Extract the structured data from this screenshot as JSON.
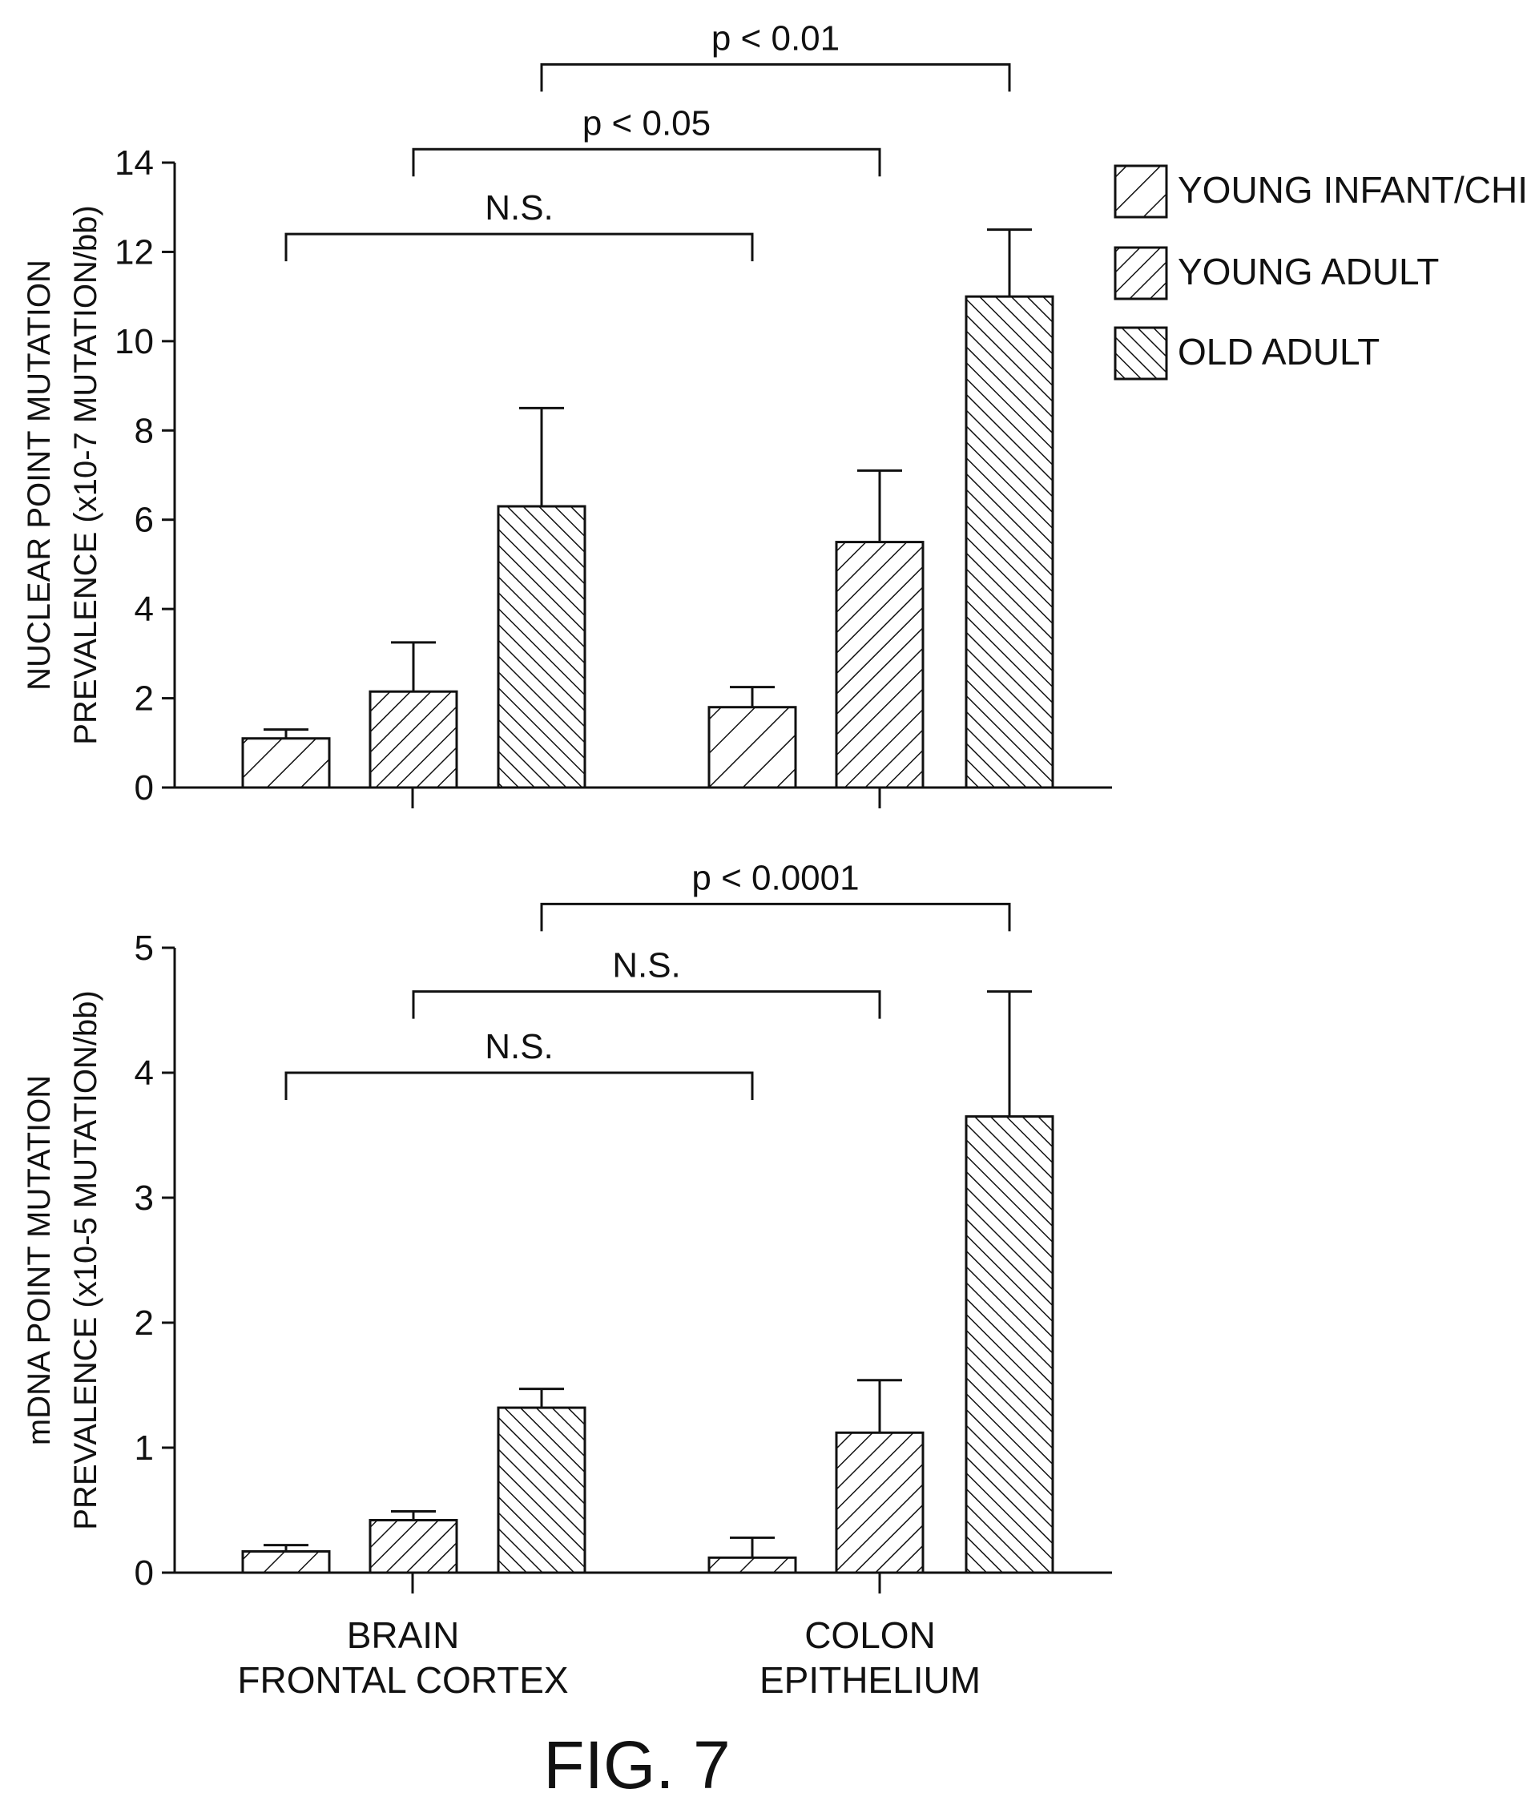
{
  "legend": {
    "items": [
      {
        "label": "YOUNG INFANT/CHILD",
        "pattern": "sparse"
      },
      {
        "label": "YOUNG ADULT",
        "pattern": "medium"
      },
      {
        "label": "OLD ADULT",
        "pattern": "dense"
      }
    ]
  },
  "figure_caption": "FIG. 7",
  "chart_data": [
    {
      "type": "bar",
      "categories": [
        "BRAIN FRONTAL CORTEX",
        "COLON EPITHELIUM"
      ],
      "category_lines": [
        [
          "BRAIN",
          "FRONTAL CORTEX"
        ],
        [
          "COLON",
          "EPITHELIUM"
        ]
      ],
      "ylabel_lines": [
        "NUCLEAR POINT MUTATION",
        "PREVALENCE (x10-7 MUTATION/bb)"
      ],
      "ylim": [
        0,
        14
      ],
      "yticks": [
        0,
        2,
        4,
        6,
        8,
        10,
        12,
        14
      ],
      "show_category_labels": false,
      "series": [
        {
          "name": "YOUNG INFANT/CHILD",
          "values": [
            1.1,
            1.8
          ],
          "errors": [
            0.2,
            0.45
          ]
        },
        {
          "name": "YOUNG ADULT",
          "values": [
            2.15,
            5.5
          ],
          "errors": [
            1.1,
            1.6
          ]
        },
        {
          "name": "OLD ADULT",
          "values": [
            6.3,
            11.0
          ],
          "errors": [
            2.2,
            1.5
          ]
        }
      ],
      "significance": [
        {
          "label": "N.S.",
          "series": 0,
          "y": 12.4
        },
        {
          "label": "p < 0.05",
          "series": 1,
          "y": 14.3
        },
        {
          "label": "p < 0.01",
          "series": 2,
          "y": 16.2
        }
      ]
    },
    {
      "type": "bar",
      "categories": [
        "BRAIN FRONTAL CORTEX",
        "COLON EPITHELIUM"
      ],
      "category_lines": [
        [
          "BRAIN",
          "FRONTAL CORTEX"
        ],
        [
          "COLON",
          "EPITHELIUM"
        ]
      ],
      "ylabel_lines": [
        "mDNA POINT MUTATION",
        "PREVALENCE (x10-5 MUTATION/bb)"
      ],
      "ylim": [
        0,
        5
      ],
      "yticks": [
        0,
        1,
        2,
        3,
        4,
        5
      ],
      "show_category_labels": true,
      "series": [
        {
          "name": "YOUNG INFANT/CHILD",
          "values": [
            0.17,
            0.12
          ],
          "errors": [
            0.05,
            0.16
          ]
        },
        {
          "name": "YOUNG ADULT",
          "values": [
            0.42,
            1.12
          ],
          "errors": [
            0.07,
            0.42
          ]
        },
        {
          "name": "OLD ADULT",
          "values": [
            1.32,
            3.65
          ],
          "errors": [
            0.15,
            1.0
          ]
        }
      ],
      "significance": [
        {
          "label": "N.S.",
          "series": 0,
          "y": 4.0
        },
        {
          "label": "N.S.",
          "series": 1,
          "y": 4.65
        },
        {
          "label": "p < 0.0001",
          "series": 2,
          "y": 5.35
        }
      ]
    }
  ]
}
